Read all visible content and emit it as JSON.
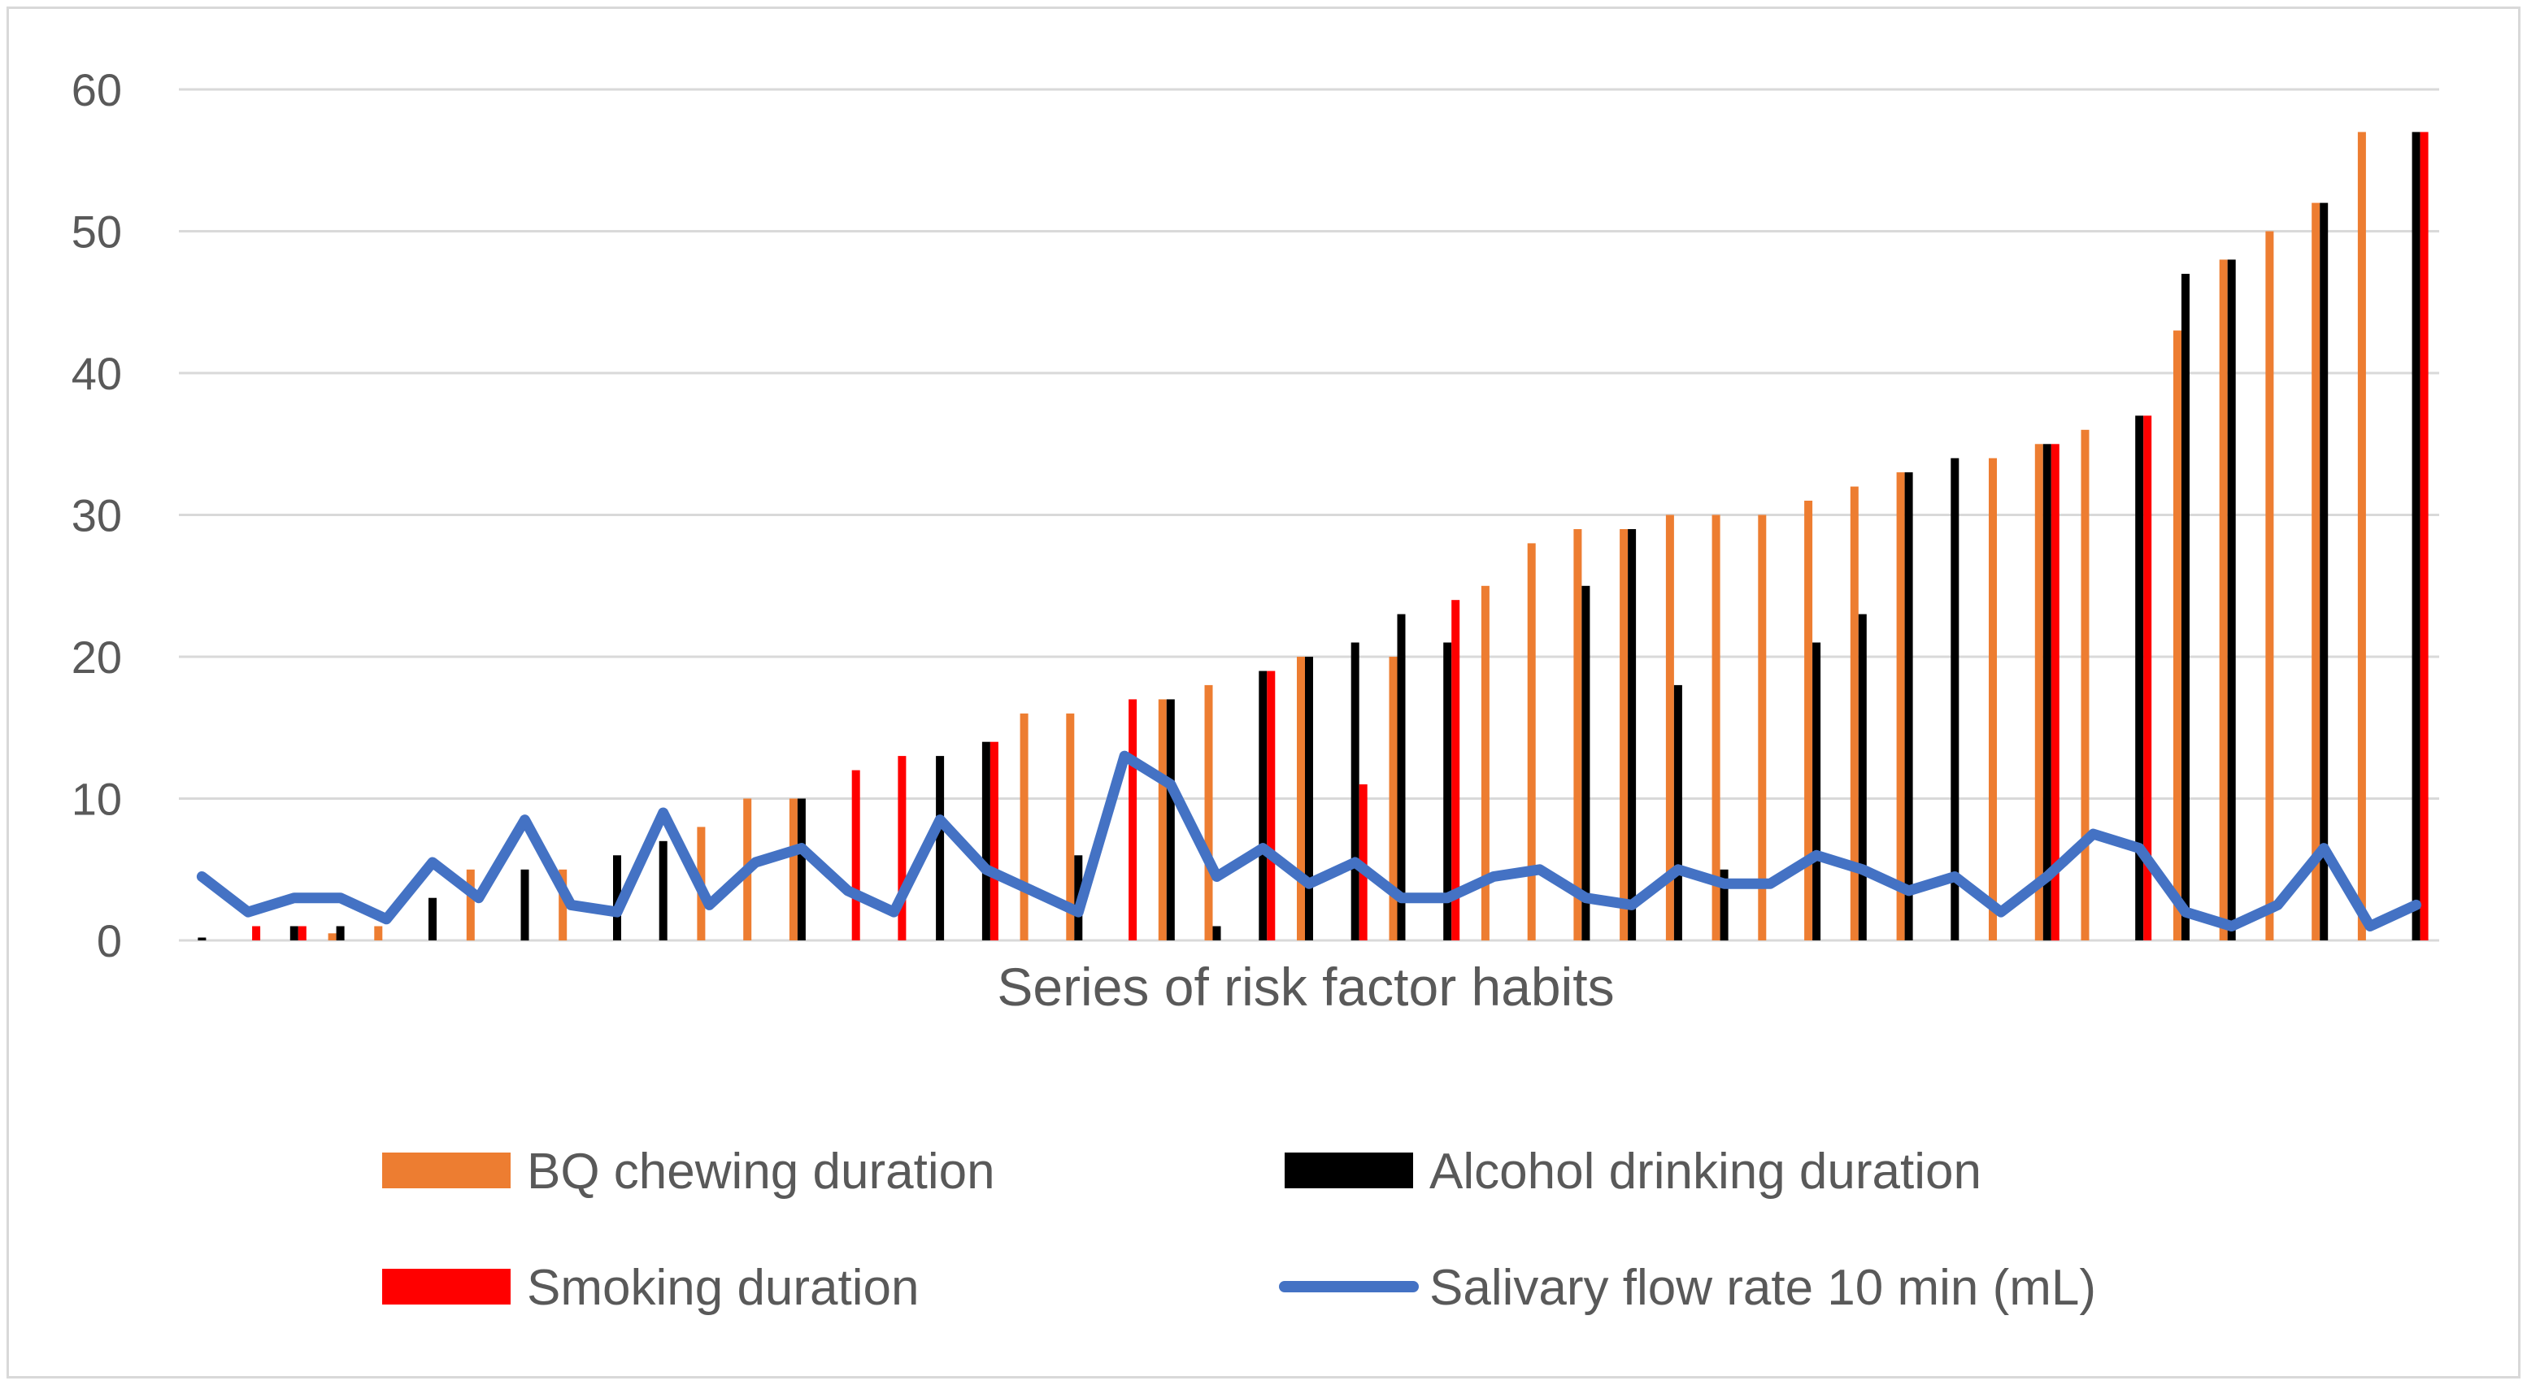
{
  "chart_data": {
    "type": "bar",
    "title": "",
    "xlabel": "Series of risk factor habits",
    "ylabel": "",
    "ylim": [
      0,
      60
    ],
    "yticks": [
      0,
      10,
      20,
      30,
      40,
      50,
      60
    ],
    "grid": true,
    "legend_position": "bottom",
    "num_categories": 49,
    "series": [
      {
        "name": "BQ chewing duration",
        "kind": "bar",
        "color": "#ED7D31",
        "values": [
          0,
          0,
          0,
          0.5,
          1,
          0,
          5,
          0,
          5,
          0,
          0,
          8,
          10,
          10,
          0,
          0,
          0,
          0,
          16,
          16,
          0,
          17,
          18,
          0,
          20,
          0,
          20,
          0,
          25,
          28,
          29,
          29,
          30,
          30,
          30,
          31,
          32,
          33,
          0,
          34,
          35,
          36,
          0,
          43,
          48,
          50,
          52,
          57,
          0
        ]
      },
      {
        "name": "Alcohol drinking duration",
        "kind": "bar",
        "color": "#000000",
        "values": [
          0.2,
          0,
          1,
          1,
          0,
          3,
          0,
          5,
          0,
          6,
          7,
          0,
          0,
          10,
          0,
          0,
          13,
          14,
          0,
          6,
          0,
          17,
          1,
          19,
          20,
          21,
          23,
          21,
          0,
          0,
          25,
          29,
          18,
          5,
          0,
          21,
          23,
          33,
          34,
          0,
          35,
          0,
          37,
          47,
          48,
          0,
          52,
          0,
          57
        ]
      },
      {
        "name": "Smoking duration",
        "kind": "bar",
        "color": "#FF0000",
        "values": [
          0,
          1,
          1,
          0,
          0,
          0,
          0,
          0,
          0,
          0,
          0,
          0,
          0,
          0,
          12,
          13,
          0,
          14,
          0,
          0,
          17,
          0,
          0,
          19,
          0,
          11,
          0,
          24,
          0,
          0,
          0,
          0,
          0,
          0,
          0,
          0,
          0,
          0,
          0,
          0,
          35,
          0,
          37,
          0,
          0,
          0,
          0,
          0,
          57
        ]
      },
      {
        "name": "Salivary flow rate 10 min (mL)",
        "kind": "line",
        "color": "#4472C4",
        "values": [
          4.5,
          2,
          3,
          3,
          1.5,
          5.5,
          3,
          8.5,
          2.5,
          2,
          9,
          2.5,
          5.5,
          6.5,
          3.5,
          2,
          8.5,
          5,
          3.5,
          2,
          13,
          11,
          4.5,
          6.5,
          4,
          5.5,
          3,
          3,
          4.5,
          5,
          3,
          2.5,
          5,
          4,
          4,
          6,
          5,
          3.5,
          4.5,
          2,
          4.5,
          7.5,
          6.5,
          2,
          1,
          2.5,
          6.5,
          1,
          2.5
        ]
      }
    ]
  }
}
